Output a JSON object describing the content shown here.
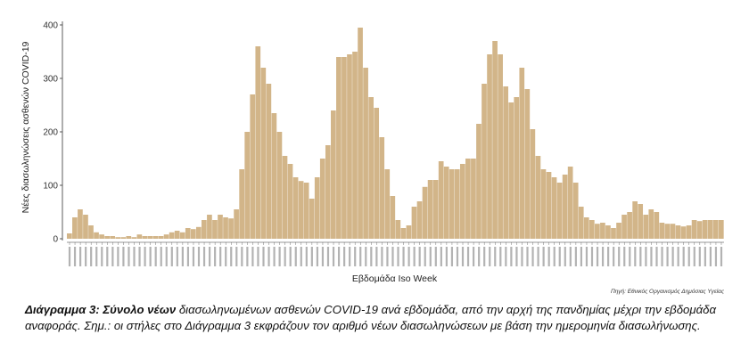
{
  "chart_data": {
    "type": "bar",
    "ylabel": "Νέες διασωληνώσεις ασθενών COVID-19",
    "xlabel": "Εβδομάδα Iso Week",
    "ylim": [
      0,
      400
    ],
    "yticks": [
      0,
      100,
      200,
      300,
      400
    ],
    "grid": false,
    "bar_color": "#d2b589",
    "values": [
      10,
      40,
      55,
      45,
      25,
      12,
      8,
      5,
      5,
      3,
      3,
      5,
      3,
      8,
      5,
      5,
      5,
      5,
      8,
      12,
      15,
      12,
      20,
      18,
      22,
      35,
      45,
      35,
      45,
      40,
      38,
      55,
      130,
      200,
      270,
      360,
      320,
      290,
      235,
      200,
      155,
      140,
      115,
      108,
      105,
      75,
      115,
      150,
      175,
      240,
      340,
      340,
      345,
      350,
      395,
      320,
      265,
      245,
      190,
      130,
      80,
      35,
      20,
      25,
      60,
      70,
      97,
      110,
      110,
      145,
      135,
      130,
      130,
      140,
      150,
      150,
      215,
      290,
      345,
      370,
      345,
      285,
      255,
      265,
      320,
      280,
      205,
      155,
      130,
      125,
      115,
      105,
      120,
      135,
      105,
      60,
      40,
      35,
      28,
      30,
      25,
      20,
      30,
      45,
      50,
      70,
      65,
      45,
      55,
      50,
      30,
      28,
      28,
      25,
      23,
      25,
      35,
      33,
      35,
      35,
      35,
      35
    ]
  },
  "source_text": "Πηγή: Εθνικός Οργανισμός Δημόσιας Υγείας",
  "caption": {
    "bold": "Διάγραμμα 3: Σύνολο νέων",
    "text1": " διασωληνωμένων ασθενών COVID-19 ανά εβδομάδα, από την αρχή της πανδημίας μέχρι την εβδομάδα αναφοράς.",
    "text2": "  Σημ.: οι στήλες στο Διάγραμμα 3 εκφράζουν τον αριθμό νέων διασωληνώσεων με βάση την ημερομηνία διασωλήνωσης."
  }
}
